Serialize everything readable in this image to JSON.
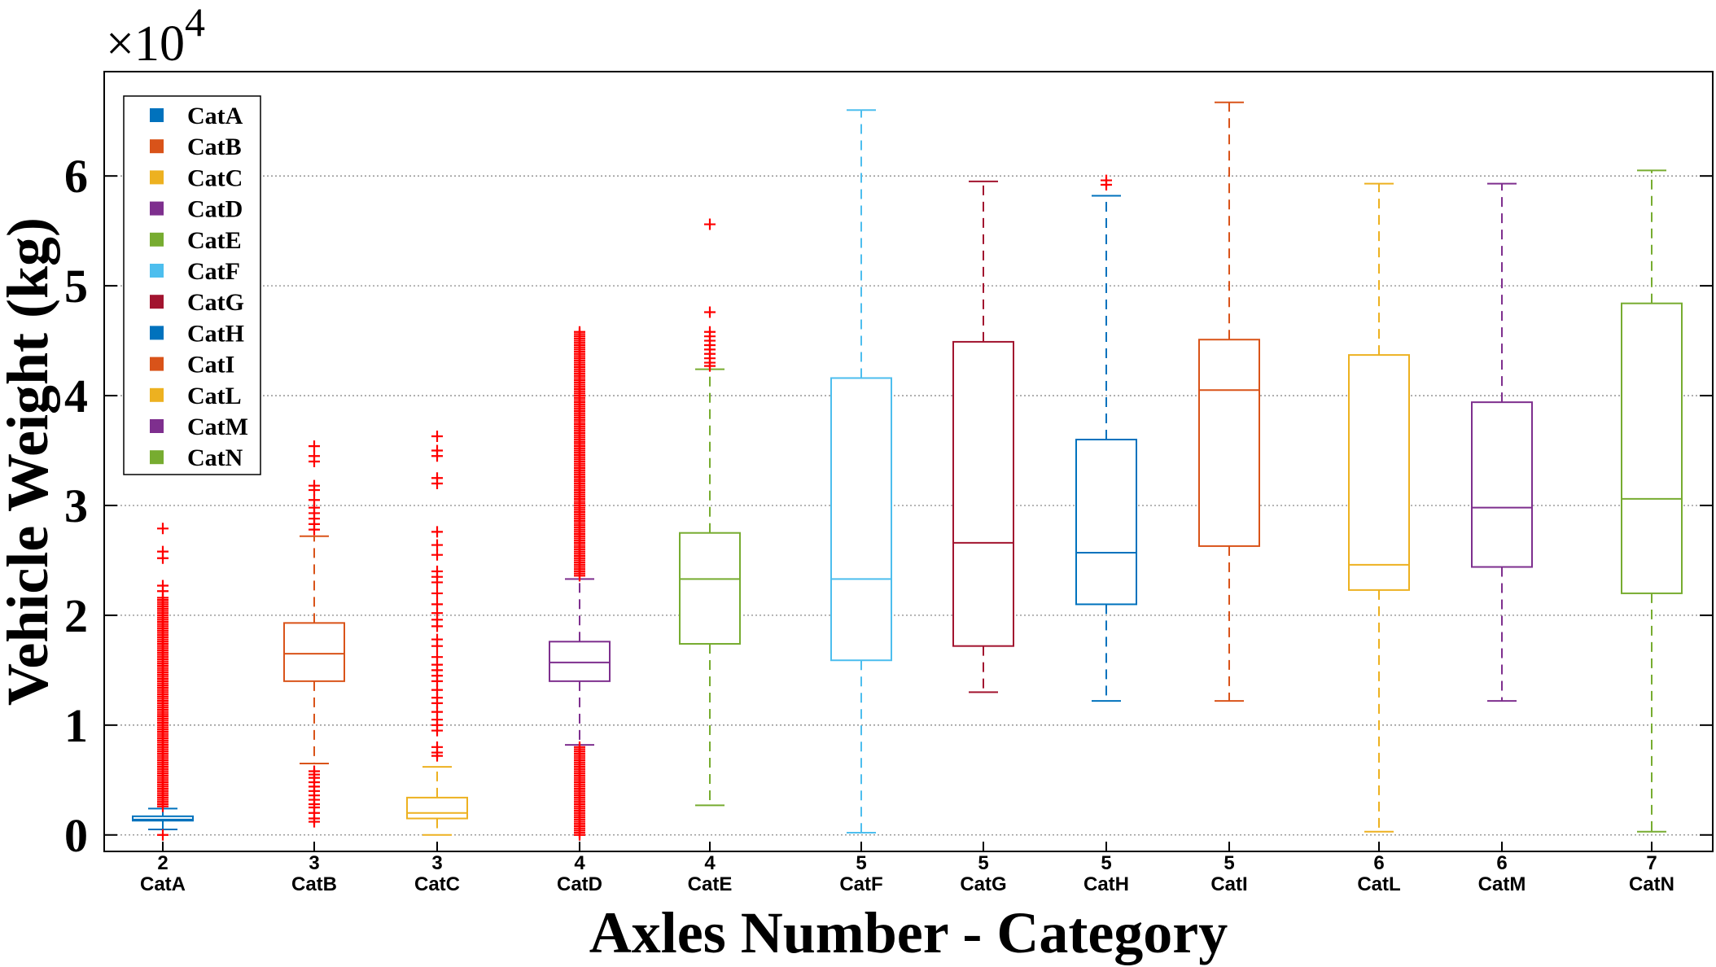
{
  "chart_data": {
    "type": "boxplot",
    "ylabel": "Vehicle Weight (kg)",
    "xlabel": "Axles Number - Category",
    "y_multiplier": "×10^4",
    "ylim": [
      -0.15,
      6.95
    ],
    "yticks": [
      0,
      1,
      2,
      3,
      4,
      5,
      6
    ],
    "grid": "horizontal dotted",
    "legend_position": "top-left",
    "categories": [
      {
        "axles": "2",
        "name": "CatA",
        "color": "#0072BD",
        "min": 0.05,
        "q1": 0.13,
        "median": 0.14,
        "q3": 0.17,
        "max": 0.24,
        "outliers_high": [
          2.79,
          2.58,
          2.52,
          2.27,
          2.22
        ],
        "outliers_high_band": [
          0.26,
          2.16
        ],
        "outliers_low": [
          0.0
        ]
      },
      {
        "axles": "3",
        "name": "CatB",
        "color": "#D95319",
        "min": 0.65,
        "q1": 1.4,
        "median": 1.65,
        "q3": 1.93,
        "max": 2.72,
        "outliers_high": [
          3.54,
          3.45,
          3.4,
          3.18,
          3.14,
          3.05,
          2.98,
          2.93,
          2.88,
          2.83,
          2.78
        ],
        "outliers_low": [
          0.58,
          0.55,
          0.52,
          0.48,
          0.44,
          0.4,
          0.36,
          0.32,
          0.28,
          0.25,
          0.2,
          0.15,
          0.12
        ]
      },
      {
        "axles": "3",
        "name": "CatC",
        "color": "#EDB120",
        "min": 0.0,
        "q1": 0.15,
        "median": 0.2,
        "q3": 0.34,
        "max": 0.62,
        "outliers_high": [
          3.63,
          3.5,
          3.45,
          3.25,
          3.2,
          2.76,
          2.64,
          2.55,
          2.4,
          2.35,
          2.3,
          2.2,
          2.1,
          2.02,
          1.96,
          1.9,
          1.78,
          1.72,
          1.62,
          1.55,
          1.5,
          1.45,
          1.4,
          1.32,
          1.25,
          1.2,
          1.12,
          1.05,
          1.0,
          0.95,
          0.8,
          0.75,
          0.72
        ]
      },
      {
        "axles": "4",
        "name": "CatD",
        "color": "#7E2F8E",
        "min": 0.82,
        "q1": 1.4,
        "median": 1.57,
        "q3": 1.76,
        "max": 2.33,
        "outliers_high_band": [
          2.36,
          4.58
        ],
        "outliers_low_band": [
          0.0,
          0.8
        ]
      },
      {
        "axles": "4",
        "name": "CatE",
        "color": "#77AC30",
        "min": 0.27,
        "q1": 1.74,
        "median": 2.33,
        "q3": 2.75,
        "max": 4.24,
        "outliers_high": [
          5.56,
          4.76,
          4.58,
          4.54,
          4.5,
          4.46,
          4.42,
          4.38,
          4.34,
          4.3,
          4.27
        ]
      },
      {
        "axles": "5",
        "name": "CatF",
        "color": "#4DBEEE",
        "min": 0.02,
        "q1": 1.59,
        "median": 2.33,
        "q3": 4.16,
        "max": 6.6,
        "outliers_high": []
      },
      {
        "axles": "5",
        "name": "CatG",
        "color": "#A2142F",
        "min": 1.3,
        "q1": 1.72,
        "median": 2.66,
        "q3": 4.49,
        "max": 5.95,
        "outliers_high": []
      },
      {
        "axles": "5",
        "name": "CatH",
        "color": "#0072BD",
        "min": 1.22,
        "q1": 2.1,
        "median": 2.57,
        "q3": 3.6,
        "max": 5.82,
        "outliers_high": [
          5.96,
          5.92
        ]
      },
      {
        "axles": "5",
        "name": "CatI",
        "color": "#D95319",
        "min": 1.22,
        "q1": 2.63,
        "median": 4.05,
        "q3": 4.51,
        "max": 6.67,
        "outliers_high": []
      },
      {
        "axles": "6",
        "name": "CatL",
        "color": "#EDB120",
        "min": 0.03,
        "q1": 2.23,
        "median": 2.46,
        "q3": 4.37,
        "max": 5.93,
        "outliers_high": []
      },
      {
        "axles": "6",
        "name": "CatM",
        "color": "#7E2F8E",
        "min": 1.22,
        "q1": 2.44,
        "median": 2.98,
        "q3": 3.94,
        "max": 5.93,
        "outliers_high": []
      },
      {
        "axles": "7",
        "name": "CatN",
        "color": "#77AC30",
        "min": 0.03,
        "q1": 2.2,
        "median": 3.06,
        "q3": 4.84,
        "max": 6.05,
        "outliers_high": []
      }
    ],
    "legend": [
      "CatA",
      "CatB",
      "CatC",
      "CatD",
      "CatE",
      "CatF",
      "CatG",
      "CatH",
      "CatI",
      "CatL",
      "CatM",
      "CatN"
    ]
  }
}
